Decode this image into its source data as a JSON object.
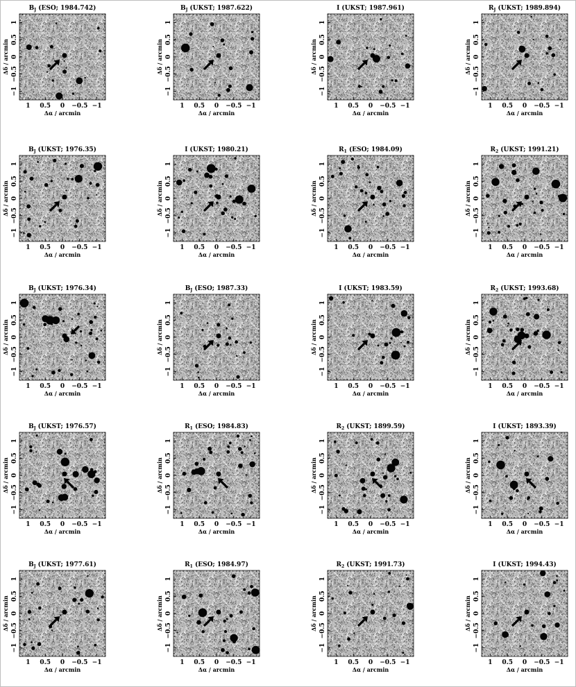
{
  "figure": {
    "axis_labels": {
      "x": "Δα / arcmin",
      "y": "Δδ / arcmin"
    },
    "x_ticks": [
      "1",
      "0.5",
      "0",
      "−0.5",
      "−1"
    ],
    "y_ticks": [
      "1",
      "0.5",
      "0",
      "−0.5",
      "−1"
    ],
    "panels": [
      {
        "title": "B",
        "sub": "J",
        "tail": " (ESO; 1984.742)",
        "arrow": "bl",
        "density": 0.25
      },
      {
        "title": "B",
        "sub": "J",
        "tail": " (UKST; 1987.622)",
        "arrow": "bl",
        "density": 0.25
      },
      {
        "title": "I",
        "sub": "",
        "tail": " (UKST; 1987.961)",
        "arrow": "bl",
        "density": 0.3
      },
      {
        "title": "R",
        "sub": "J",
        "tail": " (UKST; 1989.894)",
        "arrow": "bl",
        "density": 0.25
      },
      {
        "title": "B",
        "sub": "J",
        "tail": " (UKST; 1976.35)",
        "arrow": "bl",
        "density": 0.55
      },
      {
        "title": "I",
        "sub": "",
        "tail": " (UKST; 1980.21)",
        "arrow": "bl",
        "density": 0.6
      },
      {
        "title": "R",
        "sub": "1",
        "tail": " (ESO; 1984.09)",
        "arrow": "bl",
        "density": 0.55
      },
      {
        "title": "R",
        "sub": "2",
        "tail": " (UKST; 1991.21)",
        "arrow": "bl",
        "density": 0.6
      },
      {
        "title": "B",
        "sub": "J",
        "tail": " (UKST; 1976.34)",
        "arrow": "tr",
        "density": 0.75
      },
      {
        "title": "B",
        "sub": "J",
        "tail": " (ESO; 1987.33)",
        "arrow": "bl",
        "density": 0.35
      },
      {
        "title": "I",
        "sub": "",
        "tail": " (UKST; 1983.59)",
        "arrow": "bl",
        "density": 0.35
      },
      {
        "title": "R",
        "sub": "2",
        "tail": " (UKST; 1993.68)",
        "arrow": "bl",
        "density": 0.6
      },
      {
        "title": "B",
        "sub": "J",
        "tail": " (UKST; 1976.57)",
        "arrow": "br",
        "density": 0.55
      },
      {
        "title": "R",
        "sub": "1",
        "tail": " (ESO; 1984.83)",
        "arrow": "br",
        "density": 0.6
      },
      {
        "title": "R",
        "sub": "2",
        "tail": " (UKST; 1899.59)",
        "arrow": "br",
        "density": 0.6
      },
      {
        "title": "I",
        "sub": "",
        "tail": " (UKST; 1893.39)",
        "arrow": "br",
        "density": 0.4
      },
      {
        "title": "B",
        "sub": "J",
        "tail": " (UKST; 1977.61)",
        "arrow": "bl",
        "density": 0.5
      },
      {
        "title": "R",
        "sub": "1",
        "tail": " (ESO; 1984.97)",
        "arrow": "bl",
        "density": 0.5
      },
      {
        "title": "R",
        "sub": "2",
        "tail": " (UKST; 1991.73)",
        "arrow": "bl",
        "density": 0.35
      },
      {
        "title": "I",
        "sub": "",
        "tail": " (UKST; 1994.43)",
        "arrow": "bl",
        "density": 0.3
      }
    ]
  }
}
